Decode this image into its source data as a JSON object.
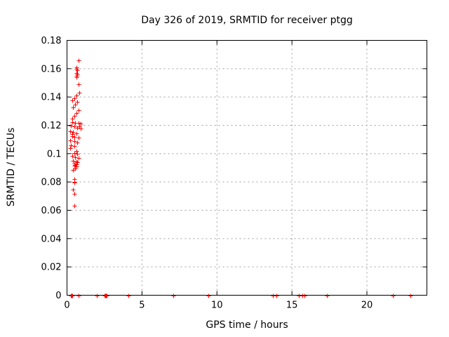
{
  "figure": {
    "title": "Day 326 of 2019, SRMTID for receiver ptgg",
    "xlabel": "GPS time / hours",
    "ylabel": "SRMTID / TECUs"
  },
  "colors": {
    "background": "#ffffff",
    "axis": "#000000",
    "grid": "#9e9e9e",
    "marker": "#ff0000"
  },
  "chart_data": {
    "type": "scatter",
    "title": "Day 326 of 2019, SRMTID for receiver ptgg",
    "xlabel": "GPS time / hours",
    "ylabel": "SRMTID / TECUs",
    "xlim": [
      0,
      24
    ],
    "ylim": [
      0,
      0.18
    ],
    "xticks": {
      "values": [
        0,
        5,
        10,
        15,
        20
      ],
      "labels": [
        "0",
        "5",
        "10",
        "15",
        "20"
      ]
    },
    "yticks": {
      "values": [
        0,
        0.02,
        0.04,
        0.06,
        0.08,
        0.1,
        0.12,
        0.14,
        0.16,
        0.18
      ],
      "labels": [
        "0",
        "0.02",
        "0.04",
        "0.06",
        "0.08",
        "0.1",
        "0.12",
        "0.14",
        "0.16",
        "0.18"
      ]
    },
    "grid": true,
    "grid_style": "dashed",
    "legend": "none",
    "marker": {
      "shape": "plus",
      "color": "#ff0000",
      "size": 7
    },
    "series": [
      {
        "name": "SRMTID",
        "points": [
          [
            0.75,
            0.166
          ],
          [
            0.65,
            0.161
          ],
          [
            0.61,
            0.16
          ],
          [
            0.7,
            0.159
          ],
          [
            0.65,
            0.157
          ],
          [
            0.7,
            0.156
          ],
          [
            0.61,
            0.155
          ],
          [
            0.65,
            0.154
          ],
          [
            0.75,
            0.149
          ],
          [
            0.84,
            0.143
          ],
          [
            0.65,
            0.141
          ],
          [
            0.51,
            0.139
          ],
          [
            0.37,
            0.1375
          ],
          [
            0.7,
            0.1365
          ],
          [
            0.56,
            0.1345
          ],
          [
            0.42,
            0.1325
          ],
          [
            0.75,
            0.1305
          ],
          [
            0.61,
            0.1285
          ],
          [
            0.47,
            0.1265
          ],
          [
            0.37,
            0.1245
          ],
          [
            0.37,
            0.1222
          ],
          [
            0.56,
            0.1217
          ],
          [
            0.75,
            0.1217
          ],
          [
            0.89,
            0.1212
          ],
          [
            0.28,
            0.1197
          ],
          [
            0.47,
            0.1192
          ],
          [
            0.84,
            0.1192
          ],
          [
            0.7,
            0.1182
          ],
          [
            0.89,
            0.1177
          ],
          [
            0.23,
            0.1157
          ],
          [
            0.42,
            0.1152
          ],
          [
            0.61,
            0.1142
          ],
          [
            0.37,
            0.1137
          ],
          [
            0.33,
            0.1122
          ],
          [
            0.51,
            0.1117
          ],
          [
            0.75,
            0.1112
          ],
          [
            0.23,
            0.1092
          ],
          [
            0.47,
            0.1087
          ],
          [
            0.7,
            0.1077
          ],
          [
            0.28,
            0.1057
          ],
          [
            0.51,
            0.1052
          ],
          [
            0.23,
            0.1037
          ],
          [
            0.61,
            0.1017
          ],
          [
            0.47,
            0.1002
          ],
          [
            0.7,
            0.0997
          ],
          [
            0.33,
            0.0982
          ],
          [
            0.56,
            0.0972
          ],
          [
            0.79,
            0.0967
          ],
          [
            0.42,
            0.0948
          ],
          [
            0.65,
            0.0943
          ],
          [
            0.7,
            0.0938
          ],
          [
            0.51,
            0.0928
          ],
          [
            0.61,
            0.0923
          ],
          [
            0.56,
            0.0918
          ],
          [
            0.47,
            0.0913
          ],
          [
            0.65,
            0.0908
          ],
          [
            0.56,
            0.0893
          ],
          [
            0.42,
            0.0883
          ],
          [
            0.51,
            0.082
          ],
          [
            0.47,
            0.08
          ],
          [
            0.51,
            0.0795
          ],
          [
            0.42,
            0.0747
          ],
          [
            0.47,
            0.0717
          ],
          [
            0.51,
            0.0632
          ],
          [
            0.25,
            0
          ],
          [
            0.28,
            0
          ],
          [
            0.31,
            0
          ],
          [
            0.34,
            0
          ],
          [
            0.79,
            0
          ],
          [
            1.98,
            0
          ],
          [
            2.52,
            0
          ],
          [
            2.56,
            0
          ],
          [
            2.6,
            0
          ],
          [
            2.64,
            0
          ],
          [
            4.1,
            0
          ],
          [
            7.1,
            0
          ],
          [
            9.45,
            0
          ],
          [
            13.75,
            0
          ],
          [
            13.95,
            0
          ],
          [
            15.45,
            0
          ],
          [
            15.7,
            0
          ],
          [
            15.85,
            0
          ],
          [
            17.35,
            0
          ],
          [
            21.75,
            0
          ],
          [
            22.9,
            0
          ]
        ]
      }
    ]
  }
}
